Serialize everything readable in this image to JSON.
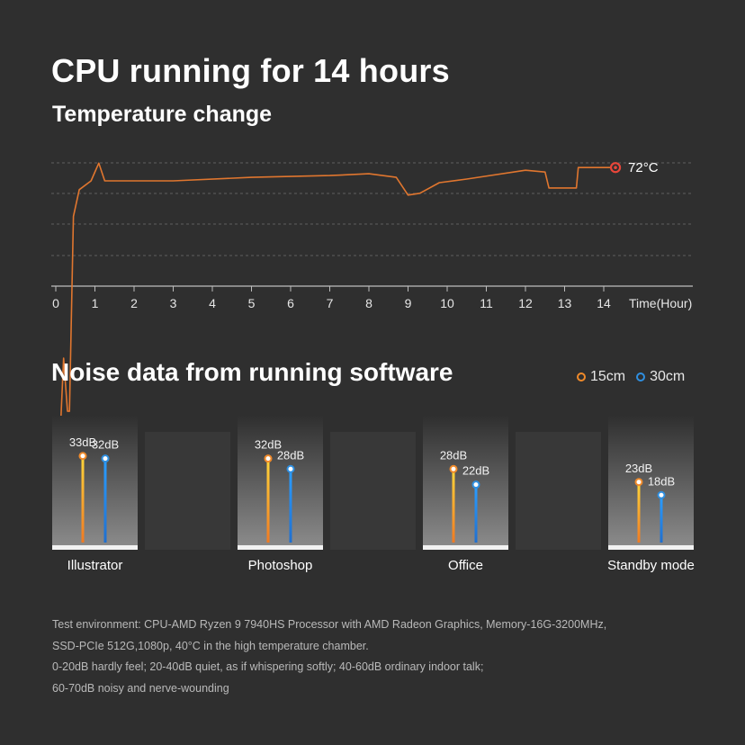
{
  "header": {
    "title": "CPU running for 14 hours",
    "subtitle": "Temperature change"
  },
  "colors": {
    "background": "#2f2f2f",
    "temp_line": "#e0762f",
    "orange": "#f08a2a",
    "blue": "#2f8fe0",
    "marker": "#e8463a"
  },
  "chart_data": [
    {
      "type": "line",
      "title": "Temperature change",
      "xlabel": "Time(Hour)",
      "x_ticks": [
        "0",
        "1",
        "2",
        "3",
        "4",
        "5",
        "6",
        "7",
        "8",
        "9",
        "10",
        "11",
        "12",
        "13",
        "14"
      ],
      "xlim": [
        0,
        14.8
      ],
      "grid": true,
      "end_label": "72°C",
      "series": [
        {
          "x": [
            0,
            0.1,
            0.2,
            0.3,
            0.35,
            0.45,
            0.6,
            0.9,
            1.1,
            1.25,
            1.5,
            3,
            5,
            7,
            8,
            8.7,
            9,
            9.3,
            9.8,
            10.5,
            12,
            12.5,
            12.6,
            13.2,
            13.3,
            13.35,
            14,
            14.3
          ],
          "y": [
            42,
            40,
            50,
            44,
            44,
            66,
            69,
            70,
            72,
            70,
            70,
            70,
            70.4,
            70.6,
            70.8,
            70.4,
            68.4,
            68.6,
            69.8,
            70.2,
            71.2,
            71.0,
            69.2,
            69.2,
            69.2,
            71.5,
            71.5,
            71.5
          ]
        }
      ]
    },
    {
      "type": "bar",
      "title": "Noise data from running software",
      "categories": [
        "Illustrator",
        "Photoshop",
        "Office",
        "Standby mode"
      ],
      "series": [
        {
          "name": "15cm",
          "values": [
            33,
            32,
            28,
            23
          ],
          "labels": [
            "33dB",
            "32dB",
            "28dB",
            "23dB"
          ]
        },
        {
          "name": "30cm",
          "values": [
            32,
            28,
            22,
            18
          ],
          "labels": [
            "32dB",
            "28dB",
            "22dB",
            "18dB"
          ]
        }
      ]
    }
  ],
  "noise": {
    "title": "Noise data from running software",
    "legend": [
      "15cm",
      "30cm"
    ]
  },
  "footnote": [
    "Test environment: CPU-AMD Ryzen 9 7940HS Processor with AMD Radeon Graphics,  Memory-16G-3200MHz,",
    "SSD-PCIe 512G,1080p, 40°C in the high temperature chamber.",
    "0-20dB hardly feel; 20-40dB quiet, as if whispering softly; 40-60dB ordinary indoor talk;",
    "60-70dB noisy and nerve-wounding"
  ]
}
